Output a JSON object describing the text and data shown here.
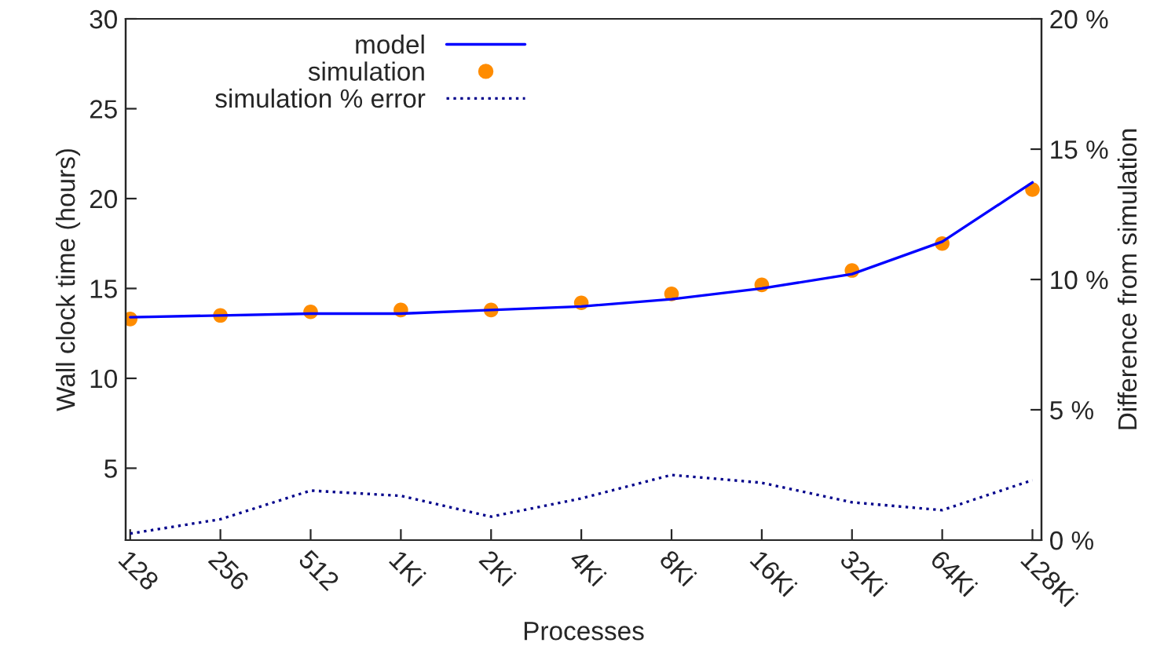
{
  "chart_data": {
    "type": "line",
    "xlabel": "Processes",
    "ylabel": "Wall clock time (hours)",
    "y2label": "Difference from simulation",
    "categories": [
      "128",
      "256",
      "512",
      "1Ki",
      "2Ki",
      "4Ki",
      "8Ki",
      "16Ki",
      "32Ki",
      "64Ki",
      "128Ki"
    ],
    "series": [
      {
        "name": "model",
        "color": "#0000ff",
        "line_style": "solid",
        "values": [
          13.4,
          13.5,
          13.6,
          13.6,
          13.8,
          14.0,
          14.4,
          15.0,
          15.8,
          17.6,
          20.9
        ]
      },
      {
        "name": "simulation",
        "type": "scatter",
        "marker": "circle",
        "color": "#ff8c00",
        "values": [
          13.3,
          13.5,
          13.7,
          13.8,
          13.8,
          14.2,
          14.7,
          15.2,
          16.0,
          17.5,
          20.5
        ]
      },
      {
        "name": "simulation % error",
        "type": "line",
        "axis": "y2",
        "color": "#00008b",
        "line_style": "dotted",
        "values": [
          0.25,
          0.8,
          1.9,
          1.7,
          0.9,
          1.6,
          2.5,
          2.2,
          1.45,
          1.15,
          2.3
        ]
      }
    ],
    "ylim": [
      1,
      30
    ],
    "yticks": [
      5,
      10,
      15,
      20,
      25,
      30
    ],
    "y2lim": [
      0,
      20
    ],
    "y2ticks": [
      {
        "value": 0,
        "label": "0 %"
      },
      {
        "value": 5,
        "label": "5 %"
      },
      {
        "value": 10,
        "label": "10 %"
      },
      {
        "value": 15,
        "label": "15 %"
      },
      {
        "value": 20,
        "label": "20 %"
      }
    ],
    "grid": false,
    "legend": "top left"
  }
}
